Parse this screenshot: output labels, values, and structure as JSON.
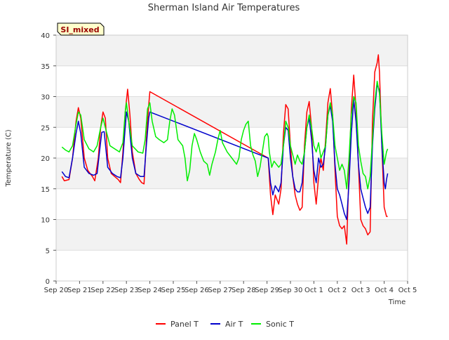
{
  "chart_data": {
    "type": "line",
    "title": "Sherman Island Air Temperatures",
    "xlabel": "Time",
    "ylabel": "Temperature (C)",
    "site_tag": "SI_mixed",
    "ylim": [
      0,
      40
    ],
    "y_ticks": [
      "0",
      "5",
      "10",
      "15",
      "20",
      "25",
      "30",
      "35",
      "40"
    ],
    "xlim": [
      0,
      15
    ],
    "x_ticks": [
      "Sep 20",
      "Sep 21",
      "Sep 22",
      "Sep 23",
      "Sep 24",
      "Sep 25",
      "Sep 26",
      "Sep 27",
      "Sep 28",
      "Sep 29",
      "Sep 30",
      "Oct 1",
      "Oct 2",
      "Oct 3",
      "Oct 4",
      "Oct 5"
    ],
    "x_units": "days since Sep 20 00:00",
    "series": [
      {
        "name": "Panel T",
        "color": "#ff0000",
        "points": [
          [
            0.25,
            17.0
          ],
          [
            0.35,
            16.3
          ],
          [
            0.55,
            16.5
          ],
          [
            0.7,
            20.0
          ],
          [
            0.85,
            26.0
          ],
          [
            0.95,
            28.2
          ],
          [
            1.05,
            26.5
          ],
          [
            1.2,
            20.0
          ],
          [
            1.35,
            18.0
          ],
          [
            1.55,
            17.0
          ],
          [
            1.65,
            16.3
          ],
          [
            1.8,
            20.0
          ],
          [
            1.9,
            25.0
          ],
          [
            2.0,
            27.5
          ],
          [
            2.1,
            26.5
          ],
          [
            2.2,
            20.0
          ],
          [
            2.35,
            17.5
          ],
          [
            2.5,
            17.0
          ],
          [
            2.65,
            16.5
          ],
          [
            2.75,
            16.0
          ],
          [
            2.85,
            21.0
          ],
          [
            2.95,
            27.5
          ],
          [
            3.05,
            31.2
          ],
          [
            3.15,
            27.0
          ],
          [
            3.25,
            21.0
          ],
          [
            3.4,
            17.5
          ],
          [
            3.55,
            16.5
          ],
          [
            3.65,
            16.0
          ],
          [
            3.75,
            15.8
          ],
          [
            3.85,
            23.0
          ],
          [
            3.95,
            28.5
          ],
          [
            4.0,
            30.8
          ],
          [
            9.05,
            20.0
          ],
          [
            9.15,
            14.0
          ],
          [
            9.25,
            10.8
          ],
          [
            9.35,
            14.0
          ],
          [
            9.5,
            12.5
          ],
          [
            9.6,
            15.0
          ],
          [
            9.7,
            24.0
          ],
          [
            9.8,
            28.7
          ],
          [
            9.9,
            28.0
          ],
          [
            10.0,
            22.0
          ],
          [
            10.1,
            17.0
          ],
          [
            10.2,
            14.0
          ],
          [
            10.3,
            12.5
          ],
          [
            10.4,
            11.5
          ],
          [
            10.5,
            12.0
          ],
          [
            10.6,
            22.0
          ],
          [
            10.7,
            27.5
          ],
          [
            10.8,
            29.2
          ],
          [
            10.9,
            25.0
          ],
          [
            11.0,
            16.0
          ],
          [
            11.1,
            12.5
          ],
          [
            11.2,
            17.0
          ],
          [
            11.3,
            20.0
          ],
          [
            11.4,
            18.0
          ],
          [
            11.5,
            23.0
          ],
          [
            11.6,
            29.0
          ],
          [
            11.7,
            31.3
          ],
          [
            11.8,
            27.0
          ],
          [
            11.9,
            18.0
          ],
          [
            12.0,
            10.5
          ],
          [
            12.1,
            9.0
          ],
          [
            12.2,
            8.5
          ],
          [
            12.3,
            9.0
          ],
          [
            12.4,
            6.0
          ],
          [
            12.5,
            18.0
          ],
          [
            12.6,
            28.0
          ],
          [
            12.7,
            33.5
          ],
          [
            12.8,
            28.0
          ],
          [
            12.9,
            19.0
          ],
          [
            13.0,
            10.0
          ],
          [
            13.1,
            9.0
          ],
          [
            13.2,
            8.5
          ],
          [
            13.3,
            7.5
          ],
          [
            13.4,
            8.0
          ],
          [
            13.5,
            26.0
          ],
          [
            13.6,
            34.0
          ],
          [
            13.7,
            35.5
          ],
          [
            13.75,
            36.8
          ],
          [
            13.8,
            34.0
          ],
          [
            13.9,
            22.0
          ],
          [
            14.0,
            12.0
          ],
          [
            14.1,
            10.5
          ],
          [
            14.15,
            10.5
          ]
        ]
      },
      {
        "name": "Air T",
        "color": "#0000cc",
        "points": [
          [
            0.25,
            17.8
          ],
          [
            0.4,
            17.0
          ],
          [
            0.55,
            16.8
          ],
          [
            0.7,
            20.0
          ],
          [
            0.85,
            24.0
          ],
          [
            0.95,
            26.0
          ],
          [
            1.05,
            24.0
          ],
          [
            1.2,
            18.5
          ],
          [
            1.4,
            17.5
          ],
          [
            1.6,
            17.2
          ],
          [
            1.75,
            17.5
          ],
          [
            1.85,
            21.0
          ],
          [
            1.95,
            24.2
          ],
          [
            2.05,
            24.3
          ],
          [
            2.2,
            18.5
          ],
          [
            2.4,
            17.5
          ],
          [
            2.6,
            17.0
          ],
          [
            2.75,
            16.8
          ],
          [
            2.85,
            20.0
          ],
          [
            2.95,
            25.0
          ],
          [
            3.0,
            27.5
          ],
          [
            3.1,
            26.0
          ],
          [
            3.25,
            20.0
          ],
          [
            3.4,
            17.5
          ],
          [
            3.6,
            17.0
          ],
          [
            3.75,
            17.0
          ],
          [
            3.85,
            22.0
          ],
          [
            3.95,
            26.5
          ],
          [
            4.0,
            27.5
          ],
          [
            9.05,
            20.0
          ],
          [
            9.15,
            16.0
          ],
          [
            9.25,
            14.0
          ],
          [
            9.35,
            15.5
          ],
          [
            9.5,
            14.5
          ],
          [
            9.6,
            16.0
          ],
          [
            9.7,
            22.0
          ],
          [
            9.8,
            25.0
          ],
          [
            9.9,
            24.5
          ],
          [
            10.0,
            20.0
          ],
          [
            10.1,
            17.0
          ],
          [
            10.2,
            15.0
          ],
          [
            10.3,
            14.5
          ],
          [
            10.4,
            14.5
          ],
          [
            10.5,
            16.0
          ],
          [
            10.6,
            21.0
          ],
          [
            10.7,
            25.0
          ],
          [
            10.8,
            26.5
          ],
          [
            10.9,
            23.0
          ],
          [
            11.0,
            18.0
          ],
          [
            11.1,
            16.0
          ],
          [
            11.2,
            20.0
          ],
          [
            11.3,
            18.5
          ],
          [
            11.4,
            19.0
          ],
          [
            11.5,
            22.0
          ],
          [
            11.6,
            27.0
          ],
          [
            11.7,
            28.5
          ],
          [
            11.8,
            26.0
          ],
          [
            11.9,
            19.0
          ],
          [
            12.0,
            15.0
          ],
          [
            12.1,
            14.0
          ],
          [
            12.2,
            12.5
          ],
          [
            12.3,
            11.0
          ],
          [
            12.4,
            10.0
          ],
          [
            12.5,
            16.0
          ],
          [
            12.6,
            24.0
          ],
          [
            12.7,
            29.5
          ],
          [
            12.8,
            26.0
          ],
          [
            12.9,
            19.0
          ],
          [
            13.0,
            15.0
          ],
          [
            13.1,
            13.5
          ],
          [
            13.2,
            12.0
          ],
          [
            13.3,
            11.0
          ],
          [
            13.4,
            12.0
          ],
          [
            13.5,
            22.0
          ],
          [
            13.6,
            28.0
          ],
          [
            13.7,
            32.0
          ],
          [
            13.8,
            31.0
          ],
          [
            13.9,
            22.0
          ],
          [
            14.0,
            16.0
          ],
          [
            14.05,
            15.0
          ],
          [
            14.1,
            16.5
          ],
          [
            14.15,
            17.5
          ]
        ]
      },
      {
        "name": "Sonic T",
        "color": "#00ee00",
        "points": [
          [
            0.25,
            21.8
          ],
          [
            0.4,
            21.3
          ],
          [
            0.55,
            21.0
          ],
          [
            0.7,
            22.0
          ],
          [
            0.85,
            25.5
          ],
          [
            0.95,
            27.5
          ],
          [
            1.05,
            27.0
          ],
          [
            1.2,
            23.0
          ],
          [
            1.4,
            21.5
          ],
          [
            1.6,
            21.0
          ],
          [
            1.75,
            22.0
          ],
          [
            1.9,
            25.0
          ],
          [
            2.0,
            26.5
          ],
          [
            2.1,
            25.0
          ],
          [
            2.3,
            22.0
          ],
          [
            2.5,
            21.5
          ],
          [
            2.7,
            21.0
          ],
          [
            2.85,
            22.5
          ],
          [
            2.95,
            27.5
          ],
          [
            3.0,
            29.0
          ],
          [
            3.1,
            26.0
          ],
          [
            3.25,
            22.0
          ],
          [
            3.5,
            21.0
          ],
          [
            3.7,
            20.8
          ],
          [
            3.8,
            23.0
          ],
          [
            3.9,
            28.0
          ],
          [
            4.0,
            29.0
          ],
          [
            4.1,
            26.0
          ],
          [
            4.25,
            23.5
          ],
          [
            4.4,
            23.0
          ],
          [
            4.6,
            22.5
          ],
          [
            4.75,
            23.0
          ],
          [
            4.85,
            26.0
          ],
          [
            4.95,
            28.0
          ],
          [
            5.05,
            27.0
          ],
          [
            5.2,
            23.0
          ],
          [
            5.4,
            22.0
          ],
          [
            5.5,
            20.0
          ],
          [
            5.6,
            16.3
          ],
          [
            5.7,
            18.0
          ],
          [
            5.8,
            22.0
          ],
          [
            5.9,
            24.0
          ],
          [
            6.0,
            23.0
          ],
          [
            6.15,
            21.0
          ],
          [
            6.3,
            19.5
          ],
          [
            6.45,
            19.0
          ],
          [
            6.55,
            17.2
          ],
          [
            6.65,
            19.0
          ],
          [
            6.8,
            21.0
          ],
          [
            6.9,
            23.0
          ],
          [
            7.0,
            24.5
          ],
          [
            7.1,
            22.5
          ],
          [
            7.3,
            21.0
          ],
          [
            7.5,
            20.0
          ],
          [
            7.7,
            19.0
          ],
          [
            7.8,
            20.0
          ],
          [
            7.9,
            23.0
          ],
          [
            8.0,
            24.5
          ],
          [
            8.1,
            25.5
          ],
          [
            8.2,
            26.0
          ],
          [
            8.3,
            22.0
          ],
          [
            8.4,
            20.5
          ],
          [
            8.5,
            19.5
          ],
          [
            8.6,
            17.0
          ],
          [
            8.7,
            18.5
          ],
          [
            8.8,
            21.0
          ],
          [
            8.9,
            23.5
          ],
          [
            9.0,
            24.0
          ],
          [
            9.05,
            23.5
          ],
          [
            9.1,
            21.0
          ],
          [
            9.2,
            18.5
          ],
          [
            9.3,
            19.5
          ],
          [
            9.4,
            19.0
          ],
          [
            9.5,
            18.5
          ],
          [
            9.6,
            19.0
          ],
          [
            9.7,
            22.0
          ],
          [
            9.8,
            26.0
          ],
          [
            9.9,
            25.0
          ],
          [
            10.0,
            22.0
          ],
          [
            10.1,
            20.5
          ],
          [
            10.2,
            19.0
          ],
          [
            10.3,
            20.5
          ],
          [
            10.4,
            19.5
          ],
          [
            10.5,
            19.0
          ],
          [
            10.6,
            21.0
          ],
          [
            10.7,
            25.0
          ],
          [
            10.8,
            27.0
          ],
          [
            10.9,
            25.0
          ],
          [
            11.0,
            22.0
          ],
          [
            11.1,
            21.0
          ],
          [
            11.2,
            22.5
          ],
          [
            11.3,
            20.0
          ],
          [
            11.4,
            21.0
          ],
          [
            11.5,
            22.0
          ],
          [
            11.6,
            27.0
          ],
          [
            11.7,
            29.0
          ],
          [
            11.8,
            27.0
          ],
          [
            11.9,
            22.0
          ],
          [
            12.0,
            20.0
          ],
          [
            12.1,
            18.0
          ],
          [
            12.2,
            19.0
          ],
          [
            12.3,
            18.0
          ],
          [
            12.4,
            15.0
          ],
          [
            12.5,
            20.0
          ],
          [
            12.6,
            27.0
          ],
          [
            12.7,
            30.0
          ],
          [
            12.8,
            29.0
          ],
          [
            12.9,
            22.0
          ],
          [
            13.0,
            19.5
          ],
          [
            13.1,
            17.5
          ],
          [
            13.2,
            17.0
          ],
          [
            13.3,
            15.0
          ],
          [
            13.4,
            17.0
          ],
          [
            13.5,
            23.0
          ],
          [
            13.6,
            29.0
          ],
          [
            13.7,
            32.5
          ],
          [
            13.8,
            30.5
          ],
          [
            13.9,
            24.0
          ],
          [
            14.0,
            19.0
          ],
          [
            14.05,
            20.0
          ],
          [
            14.1,
            21.0
          ],
          [
            14.15,
            21.5
          ]
        ]
      }
    ]
  }
}
